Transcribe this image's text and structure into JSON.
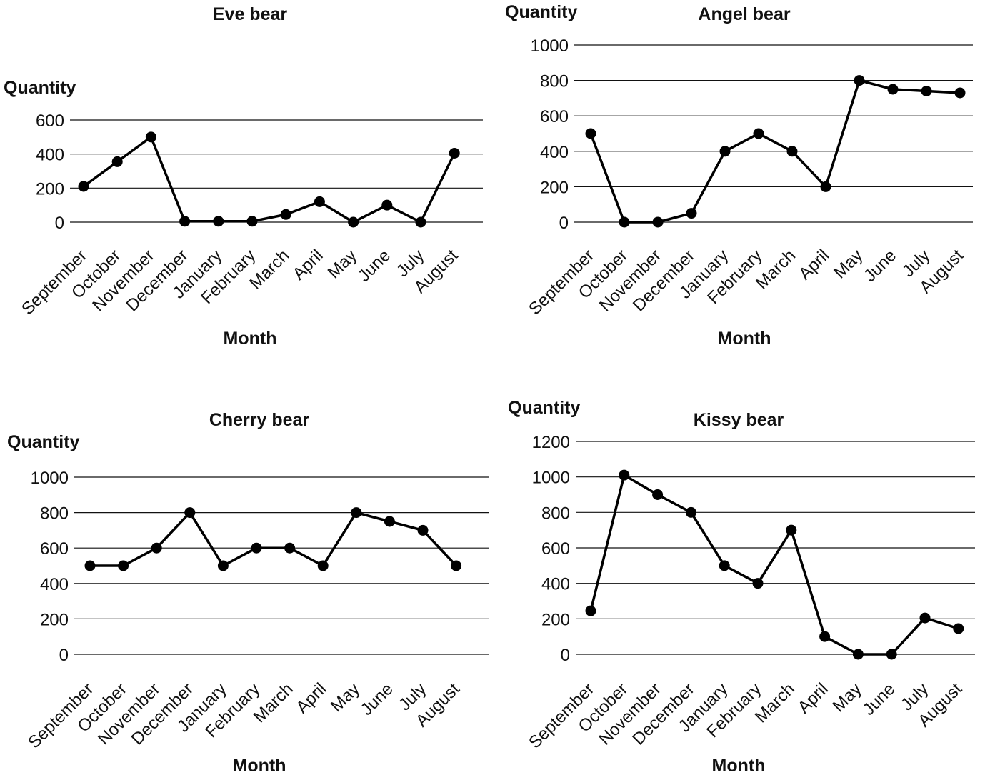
{
  "chart_data": [
    {
      "type": "line",
      "title": "Eve bear",
      "xlabel": "Month",
      "ylabel": "Quantity",
      "categories": [
        "September",
        "October",
        "November",
        "December",
        "January",
        "February",
        "March",
        "April",
        "May",
        "June",
        "July",
        "August"
      ],
      "yticks": [
        0,
        200,
        400,
        600
      ],
      "ylim": [
        0,
        600
      ],
      "grid": true,
      "series": [
        {
          "values": [
            210,
            355,
            500,
            5,
            5,
            5,
            45,
            120,
            0,
            100,
            0,
            405
          ]
        }
      ]
    },
    {
      "type": "line",
      "title": "Angel bear",
      "xlabel": "Month",
      "ylabel": "Quantity",
      "categories": [
        "September",
        "October",
        "November",
        "December",
        "January",
        "February",
        "March",
        "April",
        "May",
        "June",
        "July",
        "August"
      ],
      "yticks": [
        0,
        200,
        400,
        600,
        800,
        1000
      ],
      "ylim": [
        0,
        1000
      ],
      "grid": true,
      "series": [
        {
          "values": [
            500,
            0,
            0,
            50,
            400,
            500,
            400,
            200,
            800,
            750,
            740,
            730
          ]
        }
      ]
    },
    {
      "type": "line",
      "title": "Cherry bear",
      "xlabel": "Month",
      "ylabel": "Quantity",
      "categories": [
        "September",
        "October",
        "November",
        "December",
        "January",
        "February",
        "March",
        "April",
        "May",
        "June",
        "July",
        "August"
      ],
      "yticks": [
        0,
        200,
        400,
        600,
        800,
        1000
      ],
      "ylim": [
        0,
        1000
      ],
      "grid": true,
      "series": [
        {
          "values": [
            500,
            500,
            600,
            800,
            500,
            600,
            600,
            500,
            800,
            750,
            700,
            500
          ]
        }
      ]
    },
    {
      "type": "line",
      "title": "Kissy bear",
      "xlabel": "Month",
      "ylabel": "Quantity",
      "categories": [
        "September",
        "October",
        "November",
        "December",
        "January",
        "February",
        "March",
        "April",
        "May",
        "June",
        "July",
        "August"
      ],
      "yticks": [
        0,
        200,
        400,
        600,
        800,
        1000,
        1200
      ],
      "ylim": [
        0,
        1200
      ],
      "grid": true,
      "series": [
        {
          "values": [
            245,
            1010,
            900,
            800,
            500,
            400,
            700,
            100,
            0,
            0,
            205,
            145
          ]
        }
      ]
    }
  ]
}
